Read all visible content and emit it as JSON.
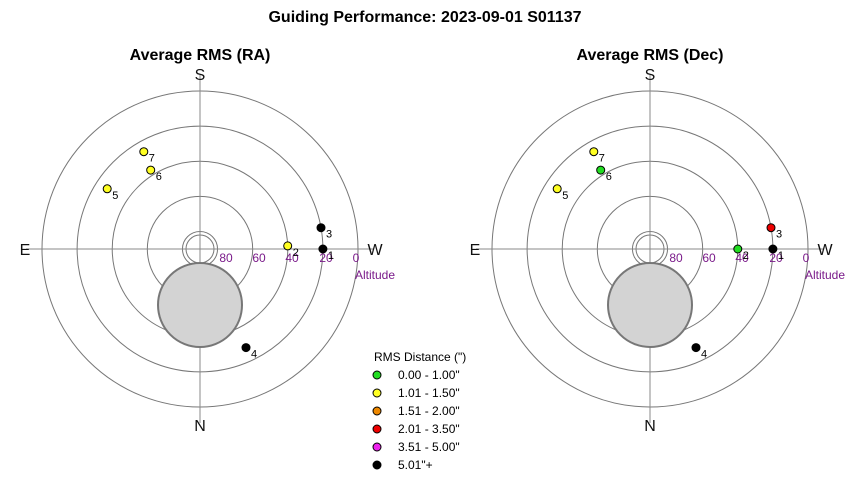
{
  "title": "Guiding Performance: 2023-09-01 S01137",
  "chart_data": [
    {
      "type": "scatter",
      "subtype": "polar-sky",
      "title": "Average RMS (RA)",
      "directions": {
        "top": "S",
        "bottom": "N",
        "left": "E",
        "right": "W"
      },
      "altitude_ticks": [
        "80",
        "60",
        "40",
        "20",
        "0"
      ],
      "altitude_axis_label": "Altitude",
      "altitude_range": [
        0,
        90
      ],
      "points": [
        {
          "label": "2",
          "azimuth": 268,
          "altitude": 40,
          "bin": "1.01 - 1.50\""
        },
        {
          "label": "3",
          "azimuth": 260,
          "altitude": 20,
          "bin": "5.01\"+"
        },
        {
          "label": "1",
          "azimuth": 270,
          "altitude": 20,
          "bin": "5.01\"+"
        },
        {
          "label": "4",
          "azimuth": 335,
          "altitude": 28,
          "bin": "5.01\"+"
        },
        {
          "label": "5",
          "azimuth": 123,
          "altitude": 27,
          "bin": "1.01 - 1.50\""
        },
        {
          "label": "6",
          "azimuth": 148,
          "altitude": 37,
          "bin": "1.01 - 1.50\""
        },
        {
          "label": "7",
          "azimuth": 150,
          "altitude": 26,
          "bin": "1.01 - 1.50\""
        }
      ],
      "grid": true
    },
    {
      "type": "scatter",
      "subtype": "polar-sky",
      "title": "Average RMS (Dec)",
      "directions": {
        "top": "S",
        "bottom": "N",
        "left": "E",
        "right": "W"
      },
      "altitude_ticks": [
        "80",
        "60",
        "40",
        "20",
        "0"
      ],
      "altitude_axis_label": "Altitude",
      "altitude_range": [
        0,
        90
      ],
      "points": [
        {
          "label": "2",
          "azimuth": 270,
          "altitude": 40,
          "bin": "0.00 - 1.00\""
        },
        {
          "label": "3",
          "azimuth": 260,
          "altitude": 20,
          "bin": "2.01 - 3.50\""
        },
        {
          "label": "1",
          "azimuth": 270,
          "altitude": 20,
          "bin": "5.01\"+"
        },
        {
          "label": "4",
          "azimuth": 335,
          "altitude": 28,
          "bin": "5.01\"+"
        },
        {
          "label": "5",
          "azimuth": 123,
          "altitude": 27,
          "bin": "1.01 - 1.50\""
        },
        {
          "label": "6",
          "azimuth": 148,
          "altitude": 37,
          "bin": "0.00 - 1.00\""
        },
        {
          "label": "7",
          "azimuth": 150,
          "altitude": 26,
          "bin": "1.01 - 1.50\""
        }
      ],
      "grid": true
    }
  ],
  "legend": {
    "title": "RMS Distance (\")",
    "placement": "bottom-center",
    "items": [
      {
        "label": "0.00 - 1.00\"",
        "color": "#22dd22"
      },
      {
        "label": "1.01 - 1.50\"",
        "color": "#ffff22"
      },
      {
        "label": "1.51 - 2.00\"",
        "color": "#ee8800"
      },
      {
        "label": "2.01 - 3.50\"",
        "color": "#ee0000"
      },
      {
        "label": "3.51 - 5.00\"",
        "color": "#ee22ee"
      },
      {
        "label": "5.01\"+",
        "color": "#000000"
      }
    ]
  },
  "moon_fill": "#d3d3d3"
}
